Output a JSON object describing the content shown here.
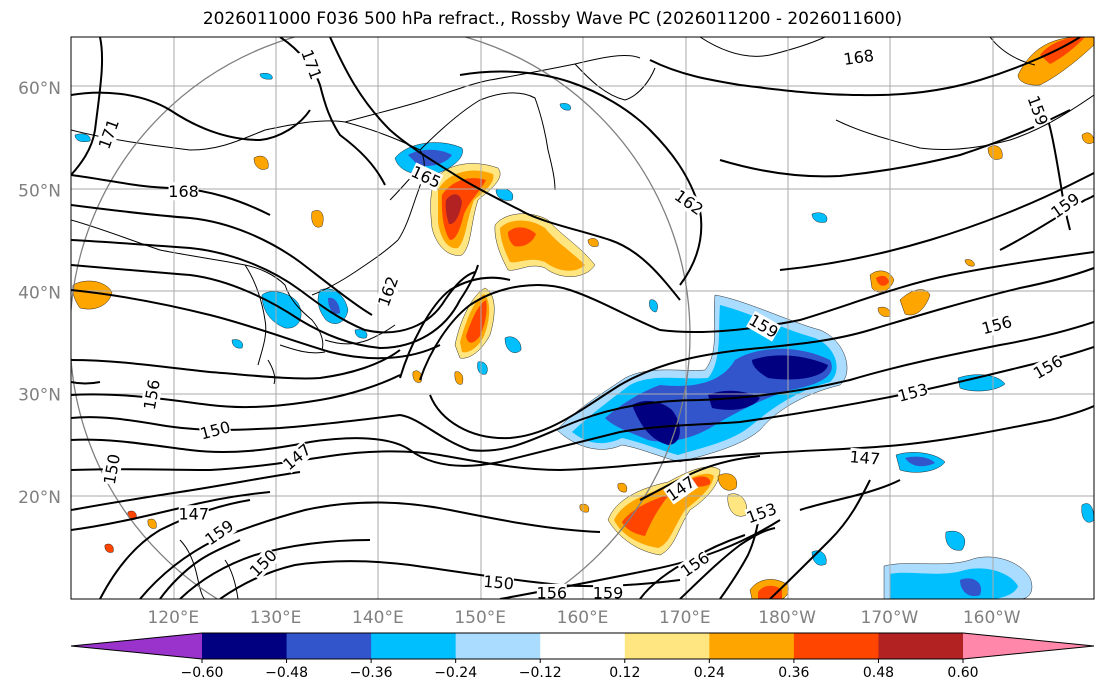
{
  "title": "2026011000 F036 500 hPa refract., Rossby Wave PC (2026011200 - 2026011600)",
  "lat_axis": {
    "labels": [
      "60°N",
      "50°N",
      "40°N",
      "30°N",
      "20°N"
    ],
    "values": [
      60,
      50,
      40,
      30,
      20
    ],
    "range": [
      10,
      65
    ]
  },
  "lon_axis": {
    "labels": [
      "120°E",
      "130°E",
      "140°E",
      "150°E",
      "160°E",
      "170°E",
      "180°W",
      "170°W",
      "160°W"
    ],
    "values": [
      120,
      130,
      140,
      150,
      160,
      170,
      180,
      190,
      200
    ],
    "range": [
      110,
      210
    ]
  },
  "colorbar": {
    "ticks": [
      "−0.60",
      "−0.48",
      "−0.36",
      "−0.24",
      "−0.12",
      "0.12",
      "0.24",
      "0.36",
      "0.48",
      "0.60"
    ],
    "colors": [
      "#9933cc",
      "#000080",
      "#3355cc",
      "#00bfff",
      "#aadcff",
      "#ffffff",
      "#ffe680",
      "#ffa500",
      "#ff4500",
      "#b22222",
      "#ff88aa"
    ],
    "extend": "both"
  },
  "contour_labels": [
    {
      "text": "171",
      "lon": 113.7,
      "lat": 55.5,
      "rot": -70
    },
    {
      "text": "171",
      "lon": 133.5,
      "lat": 62.3,
      "rot": 70
    },
    {
      "text": "168",
      "lon": 121.0,
      "lat": 49.9,
      "rot": 0
    },
    {
      "text": "165",
      "lon": 144.7,
      "lat": 51.3,
      "rot": 25
    },
    {
      "text": "162",
      "lon": 170.4,
      "lat": 48.8,
      "rot": 35
    },
    {
      "text": "168",
      "lon": 187.0,
      "lat": 63.0,
      "rot": -8
    },
    {
      "text": "159",
      "lon": 204.5,
      "lat": 57.8,
      "rot": 70
    },
    {
      "text": "159",
      "lon": 207.2,
      "lat": 48.5,
      "rot": -35
    },
    {
      "text": "162",
      "lon": 141.0,
      "lat": 40.1,
      "rot": -70
    },
    {
      "text": "159",
      "lon": 177.7,
      "lat": 36.7,
      "rot": 30
    },
    {
      "text": "156",
      "lon": 200.5,
      "lat": 36.8,
      "rot": -15
    },
    {
      "text": "156",
      "lon": 205.5,
      "lat": 32.7,
      "rot": -30
    },
    {
      "text": "153",
      "lon": 192.3,
      "lat": 30.2,
      "rot": -15
    },
    {
      "text": "156",
      "lon": 117.9,
      "lat": 30.0,
      "rot": -80
    },
    {
      "text": "150",
      "lon": 124.1,
      "lat": 26.5,
      "rot": -15
    },
    {
      "text": "147",
      "lon": 132.1,
      "lat": 23.9,
      "rot": -40
    },
    {
      "text": "147",
      "lon": 187.6,
      "lat": 23.8,
      "rot": 5
    },
    {
      "text": "150",
      "lon": 114.0,
      "lat": 22.7,
      "rot": -80
    },
    {
      "text": "147",
      "lon": 122.0,
      "lat": 18.3,
      "rot": 0
    },
    {
      "text": "159",
      "lon": 124.5,
      "lat": 16.5,
      "rot": -35
    },
    {
      "text": "150",
      "lon": 128.8,
      "lat": 13.5,
      "rot": -45
    },
    {
      "text": "147",
      "lon": 169.6,
      "lat": 20.8,
      "rot": -35
    },
    {
      "text": "153",
      "lon": 177.5,
      "lat": 18.4,
      "rot": -20
    },
    {
      "text": "150",
      "lon": 151.8,
      "lat": 11.6,
      "rot": 5
    },
    {
      "text": "156",
      "lon": 171.0,
      "lat": 13.4,
      "rot": -35
    },
    {
      "text": "156",
      "lon": 157.0,
      "lat": 10.6,
      "rot": 0
    },
    {
      "text": "159",
      "lon": 162.5,
      "lat": 10.6,
      "rot": 0
    }
  ]
}
